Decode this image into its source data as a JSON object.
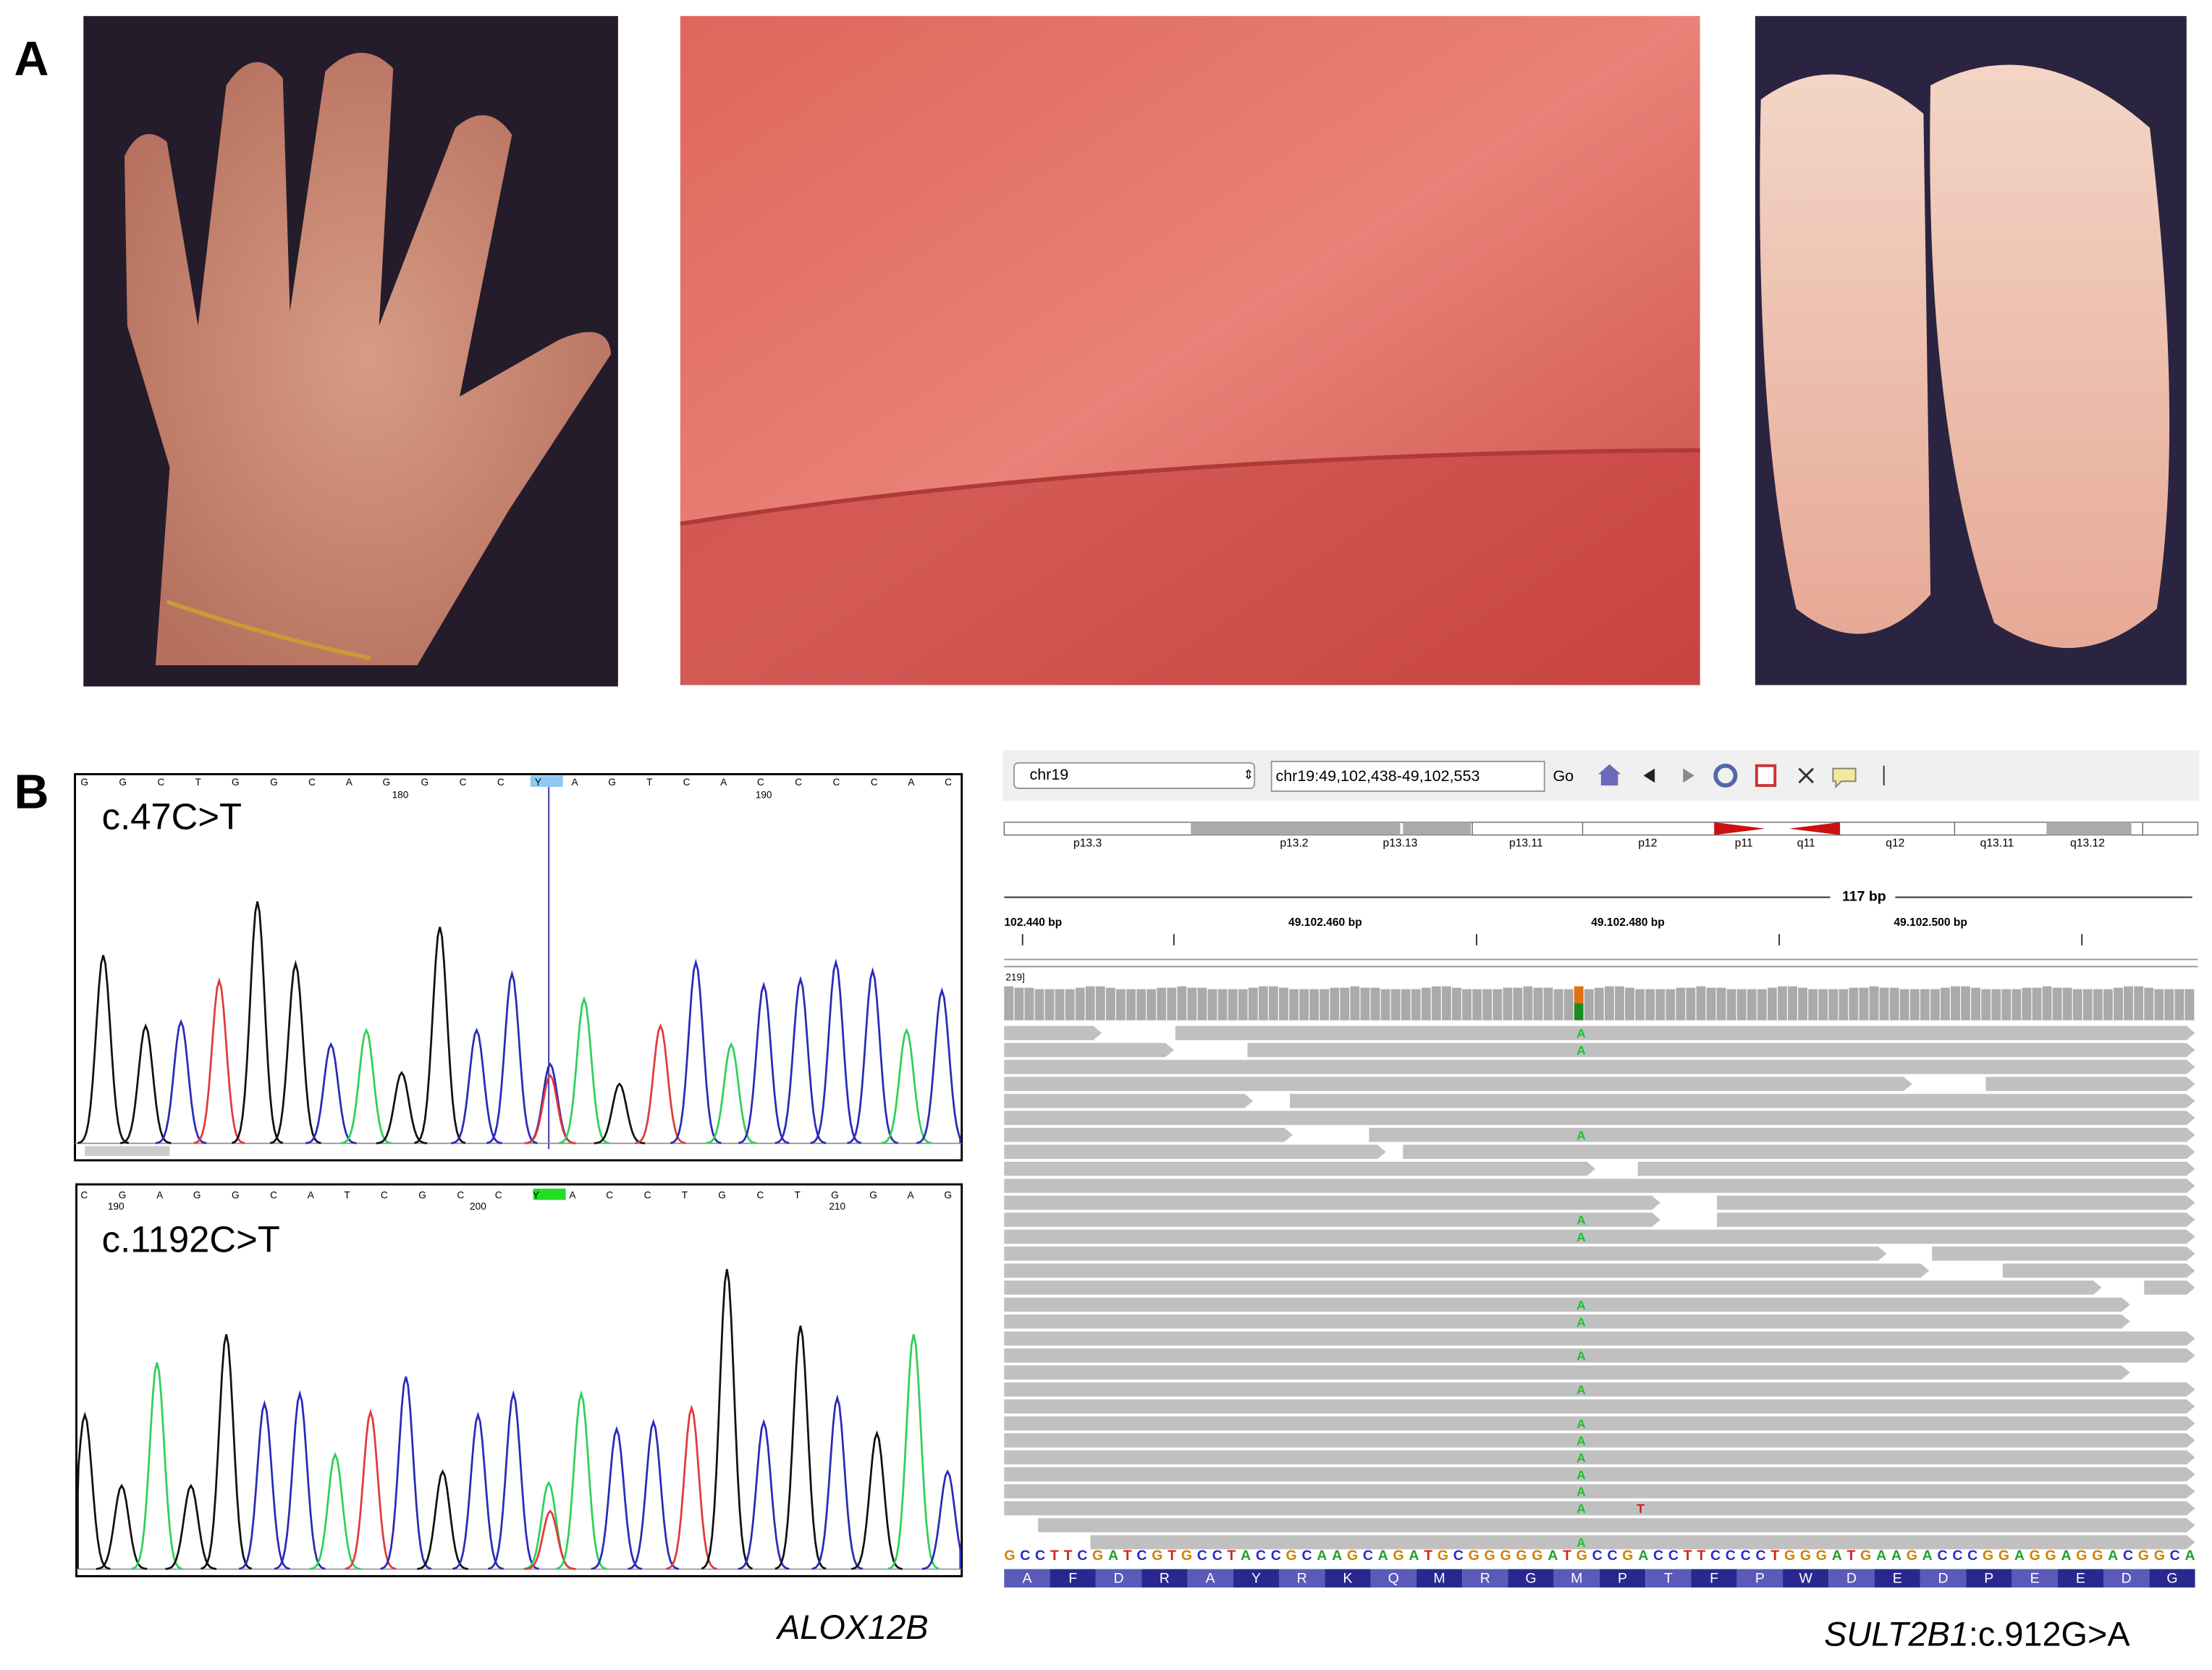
{
  "panels": {
    "A": {
      "label": "A"
    },
    "B": {
      "label": "B",
      "chromatograms": [
        {
          "label": "c.47C>T",
          "sequence": "G G C T G G C A G G C C Y A G T C A C C C C A C",
          "positions": [
            180,
            190
          ]
        },
        {
          "label": "c.1192C>T",
          "sequence": "C G A G G C A T C G C C Y A C C T G C T G G A G",
          "positions": [
            190,
            200,
            210
          ]
        }
      ],
      "gene": "ALOX12B",
      "igv": {
        "chromosome": "chr19",
        "locus": "chr19:49,102,438-49,102,553",
        "go": "Go",
        "bands": [
          "p13.3",
          "p13.2",
          "p13.13",
          "p13.11",
          "p12",
          "p11",
          "q11",
          "q12",
          "q13.11",
          "q13.12"
        ],
        "span": "117 bp",
        "ruler": [
          "102.440 bp",
          "49.102.460 bp",
          "49.102.480 bp",
          "49.102.500 bp"
        ],
        "coverage_range": "219]",
        "reference": "GCCTTCGATCGTGCCTACCGCAAGCAGATGCGGGGGATGCCGACCTTCCCCTGGGATGAAGACCCGGAGGAGGACGGCA",
        "translation": [
          "A",
          "F",
          "D",
          "R",
          "A",
          "Y",
          "R",
          "K",
          "Q",
          "M",
          "R",
          "G",
          "M",
          "P",
          "T",
          "F",
          "P",
          "W",
          "D",
          "E",
          "D",
          "P",
          "E",
          "E",
          "D",
          "G"
        ],
        "read_bases": [
          "A",
          "A",
          "A",
          "A",
          "A",
          "A",
          "A",
          "A",
          "A",
          "A",
          "A",
          "A",
          "A",
          "A",
          "A",
          "A",
          "T"
        ],
        "variant_label": {
          "gene": "SULT2B1",
          "variant": ":c.912G>A"
        }
      }
    }
  }
}
